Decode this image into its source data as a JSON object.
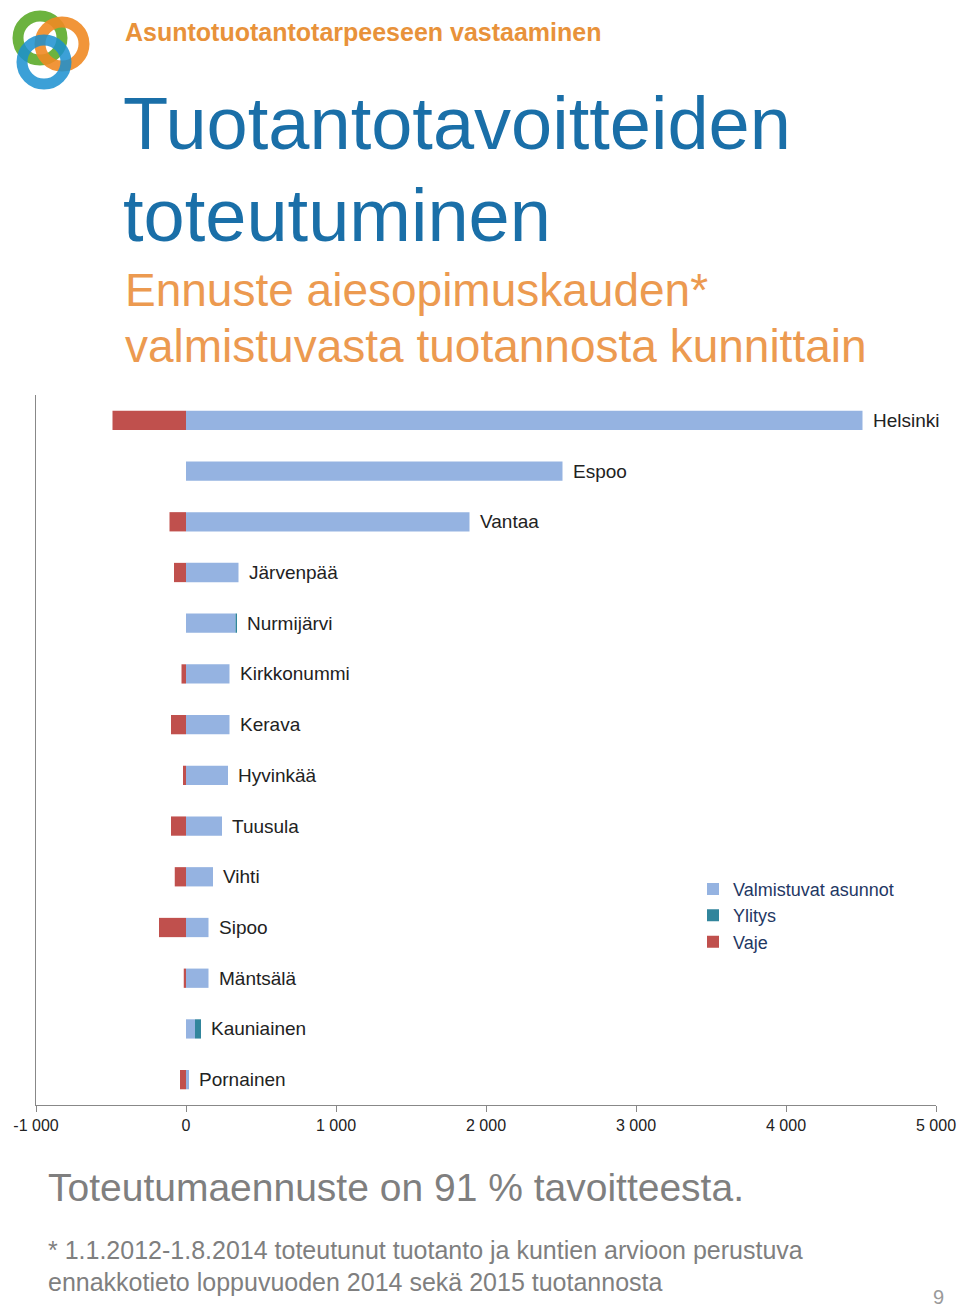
{
  "section": "Asuntotuotantotarpeeseen vastaaminen",
  "summary": "Toteutumaennuste on 91 % tavoitteesta.",
  "footnote": "* 1.1.2012-1.8.2014 toteutunut tuotanto ja kuntien arvioon perustuva ennakkotieto loppuvuoden 2014 sekä 2015 tuotannosta",
  "page": 9,
  "chart_data": {
    "type": "bar",
    "title": "Tuotantotavoitteiden toteutuminen",
    "subtitle": "Ennuste aiesopimuskauden* valmistuvasta tuotannosta kunnittain",
    "orientation": "horizontal",
    "stacked": true,
    "grid": false,
    "legend": "lower right",
    "tick_labels": "x",
    "categories": [
      "Helsinki",
      "Espoo",
      "Vantaa",
      "Järvenpää",
      "Nurmijärvi",
      "Kirkkonummi",
      "Kerava",
      "Hyvinkää",
      "Tuusula",
      "Vihti",
      "Sipoo",
      "Mäntsälä",
      "Kauniainen",
      "Pornainen"
    ],
    "series": [
      {
        "name": "Valmistuvat asunnot",
        "color": "#95b3e1",
        "values": [
          4510,
          2510,
          1890,
          350,
          330,
          290,
          290,
          280,
          240,
          180,
          150,
          150,
          60,
          20
        ]
      },
      {
        "name": "Ylitys",
        "color": "#31859c",
        "values": [
          0,
          0,
          0,
          0,
          10,
          0,
          0,
          0,
          0,
          0,
          0,
          0,
          40,
          0
        ]
      },
      {
        "name": "Vaje",
        "color": "#c0504d",
        "values": [
          -490,
          0,
          -110,
          -80,
          0,
          -30,
          -100,
          -20,
          -100,
          -75,
          -180,
          -15,
          0,
          -40
        ]
      }
    ],
    "xlim": [
      -1000,
      5000
    ],
    "xticks": [
      {
        "value": -1000,
        "label": "-1 000"
      },
      0,
      {
        "value": 1000,
        "label": "1 000"
      },
      {
        "value": 2000,
        "label": "2 000"
      },
      {
        "value": 3000,
        "label": "3 000"
      },
      {
        "value": 4000,
        "label": "4 000"
      },
      {
        "value": 5000,
        "label": "5 000"
      }
    ]
  }
}
